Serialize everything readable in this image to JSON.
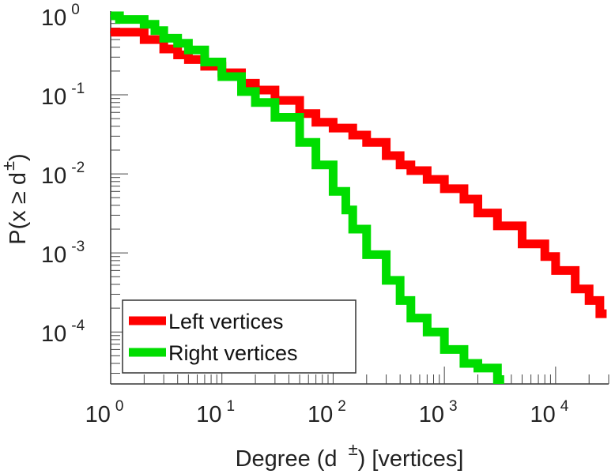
{
  "chart_data": {
    "type": "line",
    "step": true,
    "xscale": "log",
    "yscale": "log",
    "xlim": [
      1,
      30000
    ],
    "ylim": [
      2.2e-05,
      1
    ],
    "xlabel": {
      "prefix": "Degree (d",
      "sup": "±",
      "suffix": ") [vertices]"
    },
    "ylabel": {
      "prefix": "P(x ≥ d",
      "sup": "±",
      "suffix": ")"
    },
    "xticks": [
      {
        "value": 1,
        "base": "10",
        "exp": "0"
      },
      {
        "value": 10,
        "base": "10",
        "exp": "1"
      },
      {
        "value": 100,
        "base": "10",
        "exp": "2"
      },
      {
        "value": 1000,
        "base": "10",
        "exp": "3"
      },
      {
        "value": 10000,
        "base": "10",
        "exp": "4"
      }
    ],
    "yticks": [
      {
        "value": 1,
        "base": "10",
        "exp": "0"
      },
      {
        "value": 0.1,
        "base": "10",
        "exp": "-1"
      },
      {
        "value": 0.01,
        "base": "10",
        "exp": "-2"
      },
      {
        "value": 0.001,
        "base": "10",
        "exp": "-3"
      },
      {
        "value": 0.0001,
        "base": "10",
        "exp": "-4"
      }
    ],
    "legend_position": "bottom-left",
    "grid": false,
    "series": [
      {
        "name": "Left vertices",
        "color": "#ff0000",
        "points": [
          [
            1,
            0.62
          ],
          [
            2,
            0.5
          ],
          [
            3,
            0.38
          ],
          [
            4,
            0.32
          ],
          [
            5,
            0.28
          ],
          [
            7,
            0.23
          ],
          [
            10,
            0.19
          ],
          [
            15,
            0.14
          ],
          [
            20,
            0.115
          ],
          [
            30,
            0.085
          ],
          [
            50,
            0.058
          ],
          [
            70,
            0.045
          ],
          [
            100,
            0.038
          ],
          [
            150,
            0.031
          ],
          [
            200,
            0.025
          ],
          [
            300,
            0.017
          ],
          [
            400,
            0.013
          ],
          [
            500,
            0.011
          ],
          [
            700,
            0.0085
          ],
          [
            1000,
            0.0065
          ],
          [
            1500,
            0.0048
          ],
          [
            2000,
            0.0032
          ],
          [
            3000,
            0.0022
          ],
          [
            5000,
            0.0013
          ],
          [
            8000,
            0.0009
          ],
          [
            10000,
            0.0006
          ],
          [
            15000,
            0.00035
          ],
          [
            20000,
            0.00025
          ],
          [
            25000,
            0.00017
          ]
        ]
      },
      {
        "name": "Right vertices",
        "color": "#00dd00",
        "points": [
          [
            1,
            1.0
          ],
          [
            1.2,
            0.9
          ],
          [
            2,
            0.78
          ],
          [
            2.5,
            0.65
          ],
          [
            3,
            0.52
          ],
          [
            4,
            0.45
          ],
          [
            5,
            0.37
          ],
          [
            7,
            0.26
          ],
          [
            10,
            0.17
          ],
          [
            15,
            0.11
          ],
          [
            20,
            0.08
          ],
          [
            30,
            0.052
          ],
          [
            50,
            0.025
          ],
          [
            70,
            0.013
          ],
          [
            100,
            0.006
          ],
          [
            130,
            0.0035
          ],
          [
            150,
            0.002
          ],
          [
            200,
            0.00095
          ],
          [
            300,
            0.00045
          ],
          [
            400,
            0.00025
          ],
          [
            500,
            0.00015
          ],
          [
            700,
            0.0001
          ],
          [
            1000,
            6e-05
          ],
          [
            1500,
            4e-05
          ],
          [
            2000,
            3.5e-05
          ],
          [
            3000,
            2.5e-05
          ]
        ]
      }
    ]
  }
}
